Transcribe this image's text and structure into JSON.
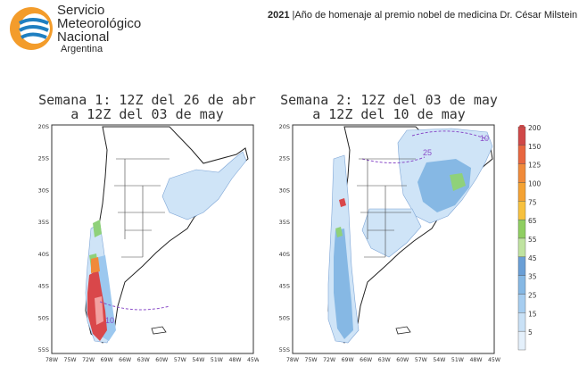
{
  "header": {
    "org_line1": "Servicio",
    "org_line2": "Meteorológico",
    "org_line3": "Nacional",
    "org_country": "Argentina",
    "year": "2021",
    "note": "|Año de homenaje al premio nobel de medicina Dr. César Milstein"
  },
  "panels": [
    {
      "title_line1": "Semana 1: 12Z del 26 de abr",
      "title_line2": "a 12Z del 03 de may",
      "contour_labels": [
        "10"
      ]
    },
    {
      "title_line1": "Semana 2: 12Z del 03 de may",
      "title_line2": "a 12Z del 10 de may",
      "contour_labels": [
        "25",
        "10"
      ]
    }
  ],
  "axes": {
    "lat_labels": [
      "20S",
      "25S",
      "30S",
      "35S",
      "40S",
      "45S",
      "50S",
      "55S"
    ],
    "lon_labels": [
      "78W",
      "75W",
      "72W",
      "69W",
      "66W",
      "63W",
      "60W",
      "57W",
      "54W",
      "51W",
      "48W",
      "45W"
    ]
  },
  "legend": {
    "values": [
      "200",
      "150",
      "125",
      "100",
      "75",
      "65",
      "55",
      "45",
      "35",
      "25",
      "15",
      "5"
    ],
    "colors": [
      "#d04848",
      "#e8663f",
      "#f08a3a",
      "#f4a233",
      "#f7c13e",
      "#8fce61",
      "#bfe3a0",
      "#6a9fd6",
      "#86b8e4",
      "#a6cdf0",
      "#c9e1f6",
      "#e4f0fb"
    ]
  },
  "colors": {
    "light_blue": "#cfe4f7",
    "mid_blue": "#9cc8ef",
    "dark_blue": "#6aa6e2",
    "green": "#8fd17a",
    "red": "#d9474a",
    "orange": "#f08a3a"
  }
}
